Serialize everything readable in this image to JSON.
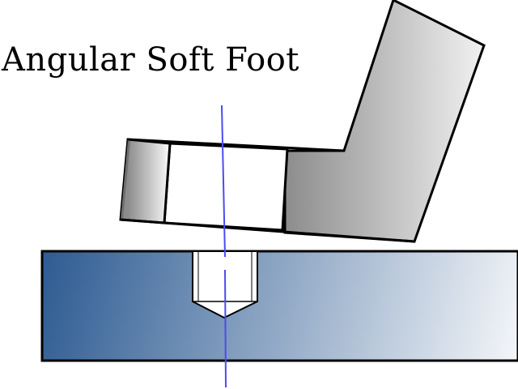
{
  "title": "Angular Soft Foot",
  "colors": {
    "base_dark": "#2d5b92",
    "base_light": "#f4f6f9",
    "foot_gray_dark": "#8c8c8c",
    "foot_gray_light": "#f2f2f2",
    "centerline": "#4b4bf2",
    "outline": "#000000",
    "background": "#ffffff"
  }
}
